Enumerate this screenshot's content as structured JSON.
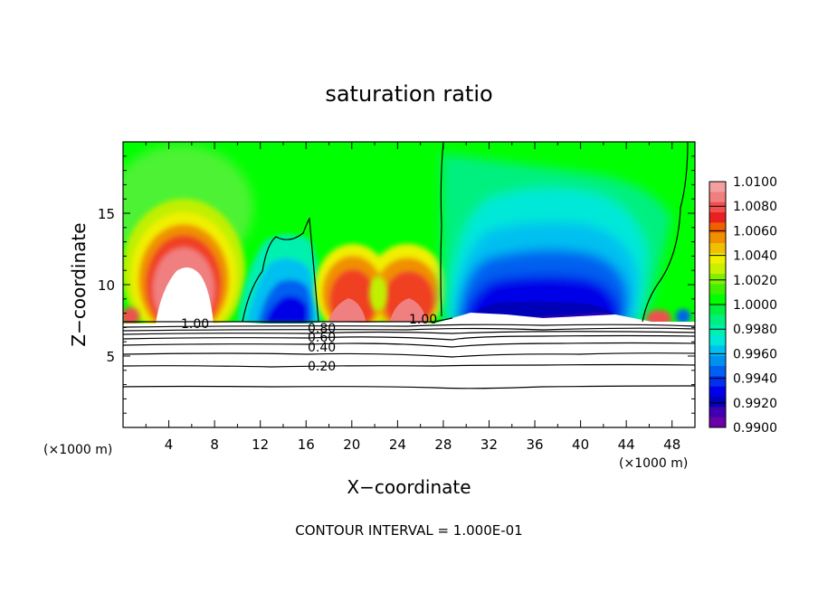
{
  "chart_data": {
    "type": "heatmap",
    "title": "saturation ratio",
    "xlabel": "X−coordinate",
    "ylabel": "Z−coordinate",
    "x_unit_label": "(×1000 m)",
    "x_unit_label_right": "(×1000 m)",
    "xlim": [
      0,
      50
    ],
    "ylim": [
      0,
      20
    ],
    "x_ticks": [
      "4",
      "8",
      "12",
      "16",
      "20",
      "24",
      "28",
      "32",
      "36",
      "40",
      "44",
      "48"
    ],
    "y_ticks": [
      "5",
      "10",
      "15"
    ],
    "colorbar": {
      "levels": [
        "1.0100",
        "1.0080",
        "1.0060",
        "1.0040",
        "1.0020",
        "1.0000",
        "0.9980",
        "0.9960",
        "0.9940",
        "0.9920",
        "0.9900"
      ],
      "colors": [
        "#f4a0a0",
        "#f08080",
        "#f05050",
        "#e82020",
        "#f06000",
        "#f09000",
        "#f0c000",
        "#f0f000",
        "#c8f000",
        "#80f000",
        "#40f000",
        "#00ff00",
        "#00f040",
        "#00f080",
        "#00f0b0",
        "#00e8d8",
        "#00c0f0",
        "#0090f0",
        "#0060f0",
        "#0030f0",
        "#0000e8",
        "#0000b8",
        "#4000b0",
        "#6a00a8"
      ]
    },
    "contour_labels": [
      "1.00",
      "0.80",
      "0.60",
      "0.40",
      "0.20",
      "1.00"
    ],
    "footer": "CONTOUR INTERVAL = 1.000E-01"
  }
}
